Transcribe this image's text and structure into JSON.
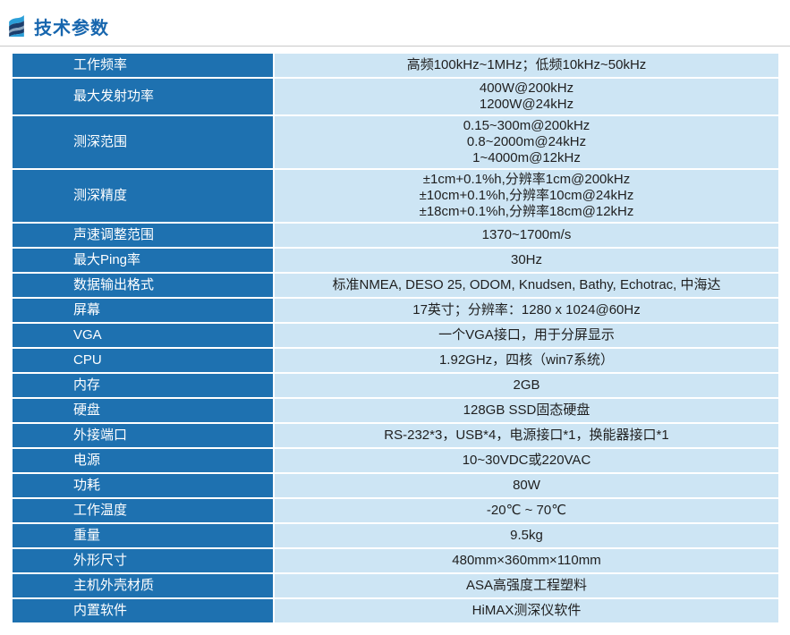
{
  "header": {
    "title": "技术参数"
  },
  "colors": {
    "title": "#1766ae",
    "rule": "#c9c9c9",
    "label_bg": "#1e71b0",
    "label_text": "#ffffff",
    "value_bg": "#cde5f4",
    "value_text": "#1f1f1f",
    "icon_bright": "#2b9fd8",
    "icon_navy": "#1c3e6c",
    "icon_gray": "#8aa6bf"
  },
  "table": {
    "rows": [
      {
        "label": "工作频率",
        "values": [
          "高频100kHz~1MHz；低频10kHz~50kHz"
        ]
      },
      {
        "label": "最大发射功率",
        "values": [
          "400W@200kHz",
          "1200W@24kHz"
        ]
      },
      {
        "label": "测深范围",
        "values": [
          "0.15~300m@200kHz",
          "0.8~2000m@24kHz",
          "1~4000m@12kHz"
        ]
      },
      {
        "label": "测深精度",
        "values": [
          "±1cm+0.1%h,分辨率1cm@200kHz",
          "±10cm+0.1%h,分辨率10cm@24kHz",
          "±18cm+0.1%h,分辨率18cm@12kHz"
        ]
      },
      {
        "label": "声速调整范围",
        "values": [
          "1370~1700m/s"
        ]
      },
      {
        "label": "最大Ping率",
        "values": [
          "30Hz"
        ]
      },
      {
        "label": "数据输出格式",
        "values": [
          "标准NMEA, DESO 25, ODOM, Knudsen, Bathy, Echotrac, 中海达"
        ]
      },
      {
        "label": "屏幕",
        "values": [
          "17英寸；分辨率：1280 x 1024@60Hz"
        ]
      },
      {
        "label": "VGA",
        "values": [
          "一个VGA接口，用于分屏显示"
        ]
      },
      {
        "label": "CPU",
        "values": [
          "1.92GHz，四核（win7系统）"
        ]
      },
      {
        "label": "内存",
        "values": [
          "2GB"
        ]
      },
      {
        "label": "硬盘",
        "values": [
          "128GB SSD固态硬盘"
        ]
      },
      {
        "label": "外接端口",
        "values": [
          "RS-232*3，USB*4，电源接口*1，换能器接口*1"
        ]
      },
      {
        "label": "电源",
        "values": [
          "10~30VDC或220VAC"
        ]
      },
      {
        "label": "功耗",
        "values": [
          "80W"
        ]
      },
      {
        "label": "工作温度",
        "values": [
          "-20℃ ~ 70℃"
        ]
      },
      {
        "label": "重量",
        "values": [
          "9.5kg"
        ]
      },
      {
        "label": "外形尺寸",
        "values": [
          "480mm×360mm×110mm"
        ]
      },
      {
        "label": "主机外壳材质",
        "values": [
          "ASA高强度工程塑料"
        ]
      },
      {
        "label": "内置软件",
        "values": [
          "HiMAX测深仪软件"
        ]
      }
    ]
  }
}
